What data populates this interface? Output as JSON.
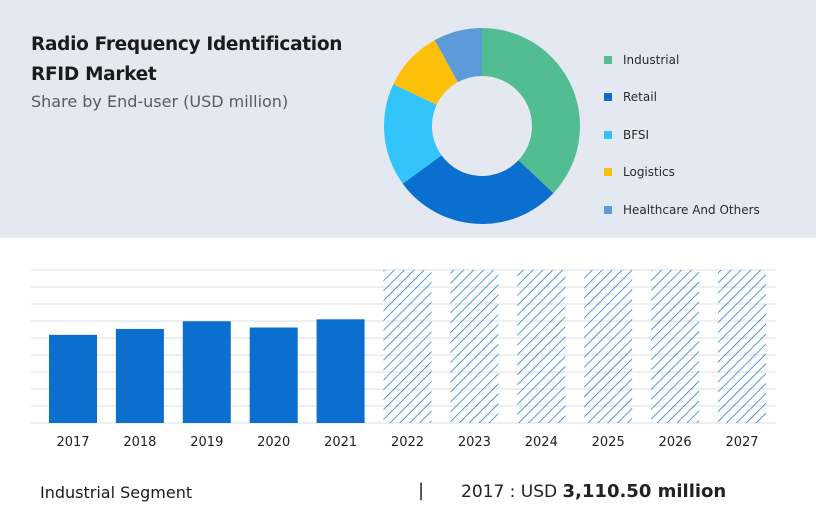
{
  "title_line1": "Radio Frequency Identification",
  "title_line2": "RFID Market",
  "subtitle": "Share by End-user (USD million)",
  "footer": {
    "segment": "Industrial Segment",
    "divider": "|",
    "year_label": "2017 : USD",
    "value": "3,110.50 million"
  },
  "chart_data": [
    {
      "type": "pie",
      "categories": [
        "Industrial",
        "Retail",
        "BFSI",
        "Logistics",
        "Healthcare And Others"
      ],
      "values": [
        37,
        28,
        17,
        10,
        8
      ],
      "colors": [
        "#52bd91",
        "#0a6fce",
        "#33c4fb",
        "#fcbf0a",
        "#5b9bd9"
      ]
    },
    {
      "type": "bar",
      "categories": [
        "2017",
        "2018",
        "2019",
        "2020",
        "2021",
        "2022",
        "2023",
        "2024",
        "2025",
        "2026",
        "2027"
      ],
      "values": [
        3110.5,
        3320,
        3590,
        3370,
        3660,
        null,
        null,
        null,
        null,
        null,
        null
      ],
      "forecast_years": [
        "2022",
        "2023",
        "2024",
        "2025",
        "2026",
        "2027"
      ],
      "bar_color": "#0a6fce",
      "grid": true
    }
  ]
}
